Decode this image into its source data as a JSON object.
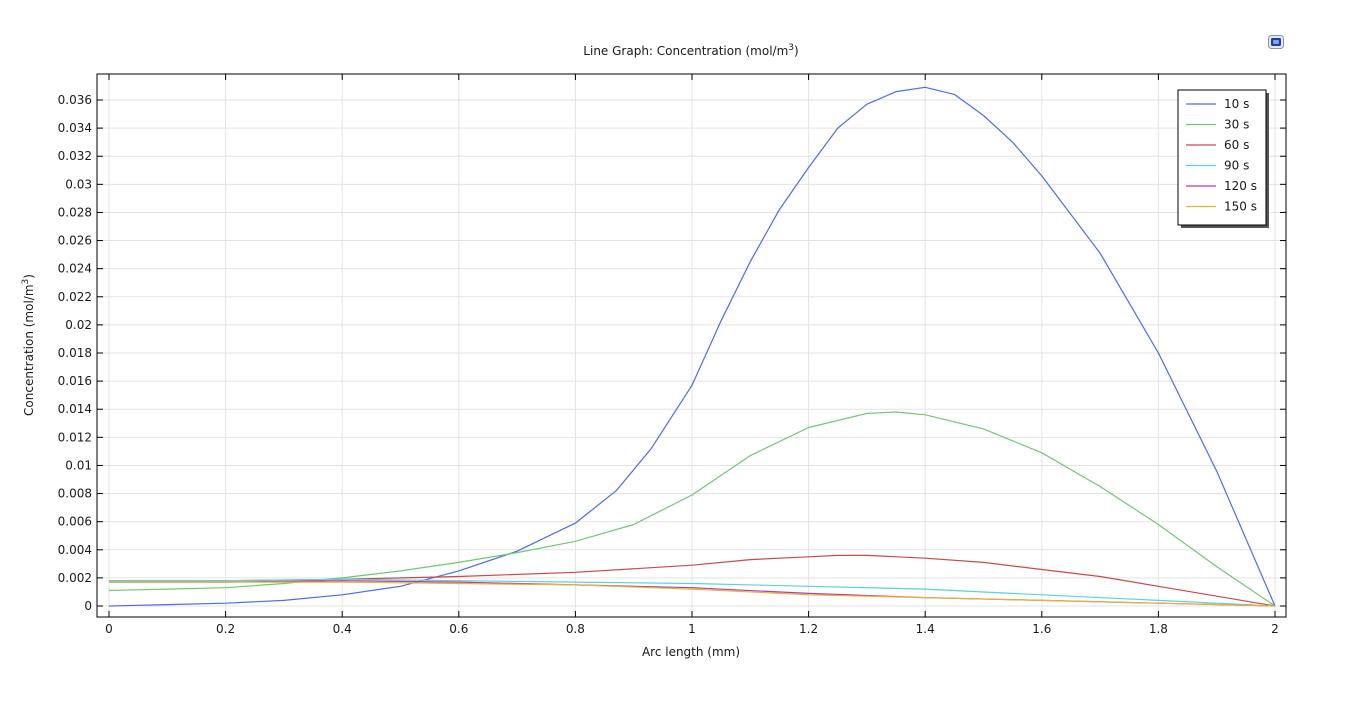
{
  "chart_data": {
    "type": "line",
    "title": "Line Graph: Concentration (mol/m",
    "title_sup": "3",
    "title_close": ")",
    "xlabel": "Arc length (mm)",
    "ylabel": "Concentration (mol/m",
    "ylabel_sup": "3",
    "ylabel_close": ")",
    "xlim": [
      0,
      2
    ],
    "ylim": [
      -0.0009,
      0.0375
    ],
    "xticks": [
      0,
      0.2,
      0.4,
      0.6,
      0.8,
      1,
      1.2,
      1.4,
      1.6,
      1.8,
      2
    ],
    "xtick_labels": [
      "0",
      "0.2",
      "0.4",
      "0.6",
      "0.8",
      "1",
      "1.2",
      "1.4",
      "1.6",
      "1.8",
      "2"
    ],
    "yticks": [
      0,
      0.002,
      0.004,
      0.006,
      0.008,
      0.01,
      0.012,
      0.014,
      0.016,
      0.018,
      0.02,
      0.022,
      0.024,
      0.026,
      0.028,
      0.03,
      0.032,
      0.034,
      0.036
    ],
    "ytick_labels": [
      "0",
      "0.002",
      "0.004",
      "0.006",
      "0.008",
      "0.01",
      "0.012",
      "0.014",
      "0.016",
      "0.018",
      "0.02",
      "0.022",
      "0.024",
      "0.026",
      "0.028",
      "0.03",
      "0.032",
      "0.034",
      "0.036"
    ],
    "grid": true,
    "legend_position": "top-right",
    "series": [
      {
        "name": "10 s",
        "color": "#4a6cf0",
        "x": [
          0,
          0.1,
          0.2,
          0.3,
          0.4,
          0.5,
          0.6,
          0.7,
          0.8,
          0.87,
          0.93,
          1.0,
          1.05,
          1.1,
          1.15,
          1.2,
          1.25,
          1.3,
          1.35,
          1.4,
          1.45,
          1.5,
          1.55,
          1.6,
          1.7,
          1.8,
          1.9,
          2.0
        ],
        "y": [
          0.0,
          0.0001,
          0.0002,
          0.0004,
          0.0008,
          0.0014,
          0.0025,
          0.0039,
          0.0059,
          0.0082,
          0.0112,
          0.0157,
          0.0203,
          0.0245,
          0.0282,
          0.0312,
          0.034,
          0.0357,
          0.0366,
          0.0369,
          0.0364,
          0.0349,
          0.033,
          0.0306,
          0.0251,
          0.018,
          0.0096,
          0.0
        ]
      },
      {
        "name": "30 s",
        "color": "#6ec96e",
        "x": [
          0,
          0.1,
          0.2,
          0.3,
          0.4,
          0.5,
          0.6,
          0.7,
          0.8,
          0.9,
          1.0,
          1.1,
          1.2,
          1.3,
          1.35,
          1.4,
          1.5,
          1.6,
          1.7,
          1.8,
          1.9,
          2.0
        ],
        "y": [
          0.0011,
          0.0012,
          0.0013,
          0.0016,
          0.002,
          0.0025,
          0.0031,
          0.0038,
          0.0046,
          0.0058,
          0.0079,
          0.0107,
          0.0127,
          0.0137,
          0.0138,
          0.0136,
          0.0126,
          0.0109,
          0.0085,
          0.0058,
          0.0028,
          0.0
        ]
      },
      {
        "name": "60 s",
        "color": "#c94a4a",
        "x": [
          0,
          0.2,
          0.4,
          0.6,
          0.8,
          1.0,
          1.1,
          1.2,
          1.25,
          1.3,
          1.4,
          1.5,
          1.6,
          1.7,
          1.8,
          1.9,
          2.0
        ],
        "y": [
          0.0018,
          0.0018,
          0.0019,
          0.0021,
          0.0024,
          0.0029,
          0.0033,
          0.0035,
          0.0036,
          0.0036,
          0.0034,
          0.0031,
          0.0026,
          0.0021,
          0.0014,
          0.0007,
          0.0
        ]
      },
      {
        "name": "90 s",
        "color": "#5ad2d8",
        "x": [
          0,
          0.2,
          0.4,
          0.6,
          0.8,
          1.0,
          1.2,
          1.4,
          1.6,
          1.8,
          2.0
        ],
        "y": [
          0.0018,
          0.0018,
          0.0019,
          0.0018,
          0.0017,
          0.0016,
          0.0014,
          0.0012,
          0.0008,
          0.0004,
          0.0
        ]
      },
      {
        "name": "120 s",
        "color": "#b23cb0",
        "x": [
          0,
          0.2,
          0.4,
          0.6,
          0.8,
          1.0,
          1.2,
          1.4,
          1.6,
          1.8,
          2.0
        ],
        "y": [
          0.0017,
          0.0017,
          0.0018,
          0.0017,
          0.0015,
          0.0013,
          0.0009,
          0.0006,
          0.0004,
          0.0002,
          0.0
        ]
      },
      {
        "name": "150 s",
        "color": "#e8b23a",
        "x": [
          0,
          0.2,
          0.4,
          0.6,
          0.8,
          1.0,
          1.2,
          1.4,
          1.6,
          1.8,
          2.0
        ],
        "y": [
          0.0017,
          0.0017,
          0.0017,
          0.0016,
          0.0015,
          0.0012,
          0.0008,
          0.0006,
          0.0004,
          0.0002,
          0.0
        ]
      }
    ]
  },
  "toolbar": {
    "icon": "image-export-icon"
  }
}
